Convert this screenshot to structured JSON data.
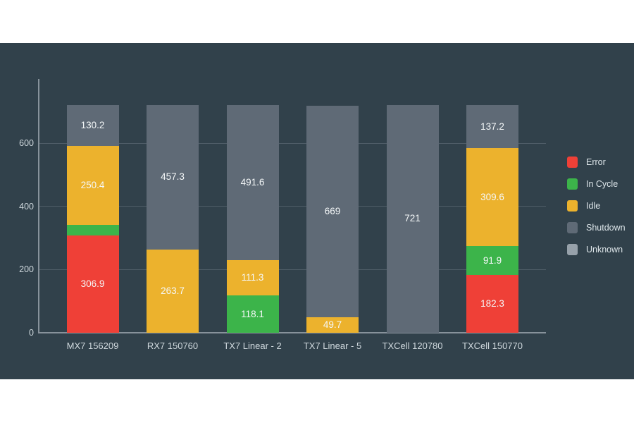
{
  "page": {
    "background": "#ffffff",
    "panel_background": "#31414b",
    "grid_color": "#4f5d68",
    "axis_color": "#87929b",
    "tick_label_color": "#cfd8dd",
    "value_label_color": "#f5f8f9",
    "legend_label_color": "#dde5e9"
  },
  "chart_data": {
    "type": "bar",
    "subtype": "stacked-vertical",
    "title": "",
    "xlabel": "",
    "ylabel": "",
    "grid": true,
    "legend_position": "right",
    "ylim": [
      0,
      740
    ],
    "yticks": [
      0,
      200,
      400,
      600
    ],
    "categories": [
      "MX7 156209",
      "RX7 150760",
      "TX7 Linear - 2",
      "TX7 Linear - 5",
      "TXCell 120780",
      "TXCell 150770"
    ],
    "series": [
      {
        "name": "Error",
        "color": "#ef4037",
        "values": [
          306.9,
          0,
          0,
          0,
          0,
          182.3
        ]
      },
      {
        "name": "In Cycle",
        "color": "#3cb44a",
        "values": [
          33.5,
          0,
          118.1,
          0,
          0,
          91.9
        ]
      },
      {
        "name": "Idle",
        "color": "#ecb22d",
        "values": [
          250.4,
          263.7,
          111.3,
          49.7,
          0,
          309.6
        ]
      },
      {
        "name": "Shutdown",
        "color": "#5f6a76",
        "values": [
          130.2,
          457.3,
          491.6,
          669,
          721,
          137.2
        ]
      },
      {
        "name": "Unknown",
        "color": "#97a1aa",
        "values": [
          0,
          0,
          0,
          0,
          0,
          0
        ]
      }
    ],
    "visible_segment_labels": [
      "130.2",
      "250.4",
      "306.9",
      "457.3",
      "263.7",
      "491.6",
      "111.3",
      "118.1",
      "669",
      "49.7",
      "721",
      "137.2",
      "309.6",
      "91.9",
      "182.3"
    ]
  }
}
